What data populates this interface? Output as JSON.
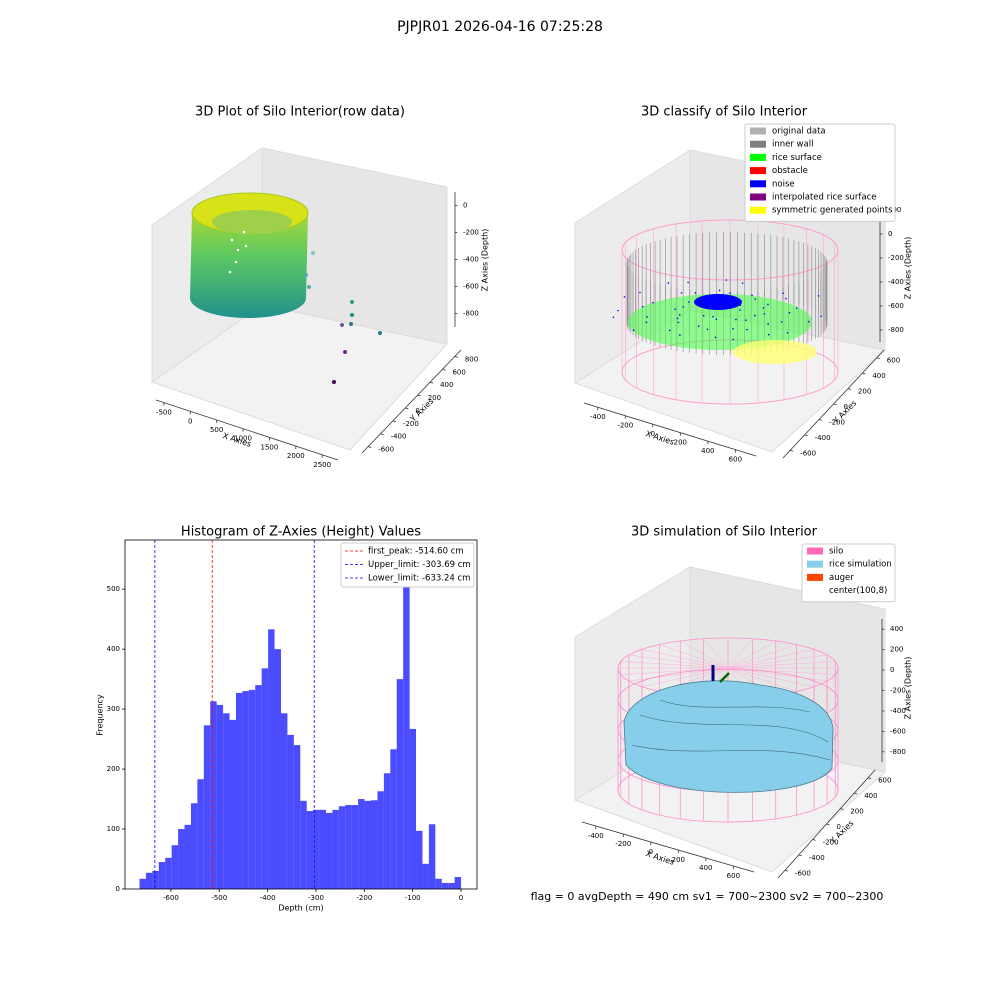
{
  "title": "PJPJR01 2026-04-16 07:25:28",
  "status": "flag = 0     avgDepth = 490 cm  sv1 = 700~2300  sv2 = 700~2300",
  "chart_data": [
    {
      "type": "scatter3d",
      "title": "3D Plot of Silo Interior(row data)",
      "xlabel": "X Axies",
      "ylabel": "Y Axies",
      "zlabel": "Z Axies (Depth)",
      "xlim": [
        -650,
        2800
      ],
      "xticks": [
        -500,
        0,
        500,
        1000,
        1500,
        2000,
        2500
      ],
      "ylim": [
        -700,
        900
      ],
      "yticks": [
        -600,
        -400,
        -200,
        0,
        200,
        400,
        600,
        800
      ],
      "zlim": [
        -900,
        100
      ],
      "zticks": [
        0,
        -200,
        -400,
        -600,
        -800
      ]
    },
    {
      "type": "scatter3d",
      "title": "3D classify of Silo Interior",
      "xlabel": "X Axies",
      "ylabel": "Y Axies",
      "zlabel": "Z Axies (Depth)",
      "xlim": [
        -500,
        750
      ],
      "xticks": [
        -400,
        -200,
        0,
        200,
        400,
        600
      ],
      "ylim": [
        -700,
        700
      ],
      "yticks": [
        -600,
        -400,
        -200,
        0,
        200,
        400,
        600
      ],
      "zlim": [
        -900,
        300
      ],
      "zticks": [
        200,
        0,
        -200,
        -400,
        -600,
        -800
      ],
      "legend": [
        {
          "name": "original data",
          "color": "#b0b0b0"
        },
        {
          "name": "inner wall",
          "color": "#808080"
        },
        {
          "name": "rice surface",
          "color": "#00ff00"
        },
        {
          "name": "obstacle",
          "color": "#ff0000"
        },
        {
          "name": "noise",
          "color": "#0000ff"
        },
        {
          "name": "interpolated rice surface",
          "color": "#800080"
        },
        {
          "name": "symmetric generated points",
          "color": "#ffff00"
        }
      ]
    },
    {
      "type": "histogram",
      "title": "Histogram of Z-Axies (Height) Values",
      "xlabel": "Depth (cm)",
      "ylabel": "Frequency",
      "color": "#0000ff",
      "alpha": 0.7,
      "bins": [
        -665,
        -651.7,
        -638.4,
        -625.1,
        -611.8,
        -598.5,
        -585.2,
        -571.9,
        -558.6,
        -545.3,
        -532,
        -518.7,
        -505.4,
        -492.1,
        -478.8,
        -465.5,
        -452.2,
        -438.9,
        -425.6,
        -412.3,
        -399,
        -385.7,
        -372.4,
        -359.1,
        -345.8,
        -332.5,
        -319.2,
        -305.9,
        -292.6,
        -279.3,
        -266,
        -252.7,
        -239.4,
        -226.1,
        -212.8,
        -199.5,
        -186.2,
        -172.9,
        -159.6,
        -146.3,
        -133,
        -119.7,
        -106.4,
        -93.1,
        -79.8,
        -66.5,
        -53.2,
        -39.9,
        -26.6,
        -13.3,
        0
      ],
      "values": [
        17,
        27,
        30,
        45,
        52,
        73,
        100,
        107,
        143,
        183,
        273,
        313,
        307,
        293,
        282,
        327,
        330,
        332,
        340,
        368,
        433,
        400,
        293,
        257,
        240,
        147,
        130,
        132,
        132,
        127,
        132,
        138,
        140,
        140,
        150,
        147,
        148,
        163,
        193,
        233,
        350,
        550,
        267,
        97,
        42,
        108,
        17,
        10,
        10,
        20
      ],
      "xlim": [
        -695,
        33
      ],
      "xticks": [
        -600,
        -500,
        -400,
        -300,
        -200,
        -100,
        0
      ],
      "ylim": [
        0,
        582
      ],
      "yticks": [
        0,
        100,
        200,
        300,
        400,
        500
      ],
      "vlines": [
        {
          "label": "first_peak: -514.60 cm",
          "value": -514.6,
          "color": "#ff0000"
        },
        {
          "label": "Upper_limit: -303.69 cm",
          "value": -303.69,
          "color": "#0000ff"
        },
        {
          "label": "Lower_limit: -633.24 cm",
          "value": -633.24,
          "color": "#0000ff"
        }
      ]
    },
    {
      "type": "surface3d",
      "title": "3D simulation of Silo Interior",
      "xlabel": "X Axies",
      "ylabel": "Y Axies",
      "zlabel": "Z Axies (Depth)",
      "xlim": [
        -500,
        750
      ],
      "xticks": [
        -400,
        -200,
        0,
        200,
        400,
        600
      ],
      "ylim": [
        -700,
        700
      ],
      "yticks": [
        -600,
        -400,
        -200,
        0,
        200,
        400,
        600
      ],
      "zlim": [
        -900,
        500
      ],
      "zticks": [
        400,
        200,
        0,
        -200,
        -400,
        -600,
        -800
      ],
      "legend": [
        {
          "name": "silo",
          "color": "#ff69b4"
        },
        {
          "name": "rice simulation",
          "color": "#87ceeb"
        },
        {
          "name": "auger",
          "color": "#ff4500"
        },
        {
          "name": "center(100,8)",
          "color": "#ffffff"
        }
      ]
    }
  ]
}
